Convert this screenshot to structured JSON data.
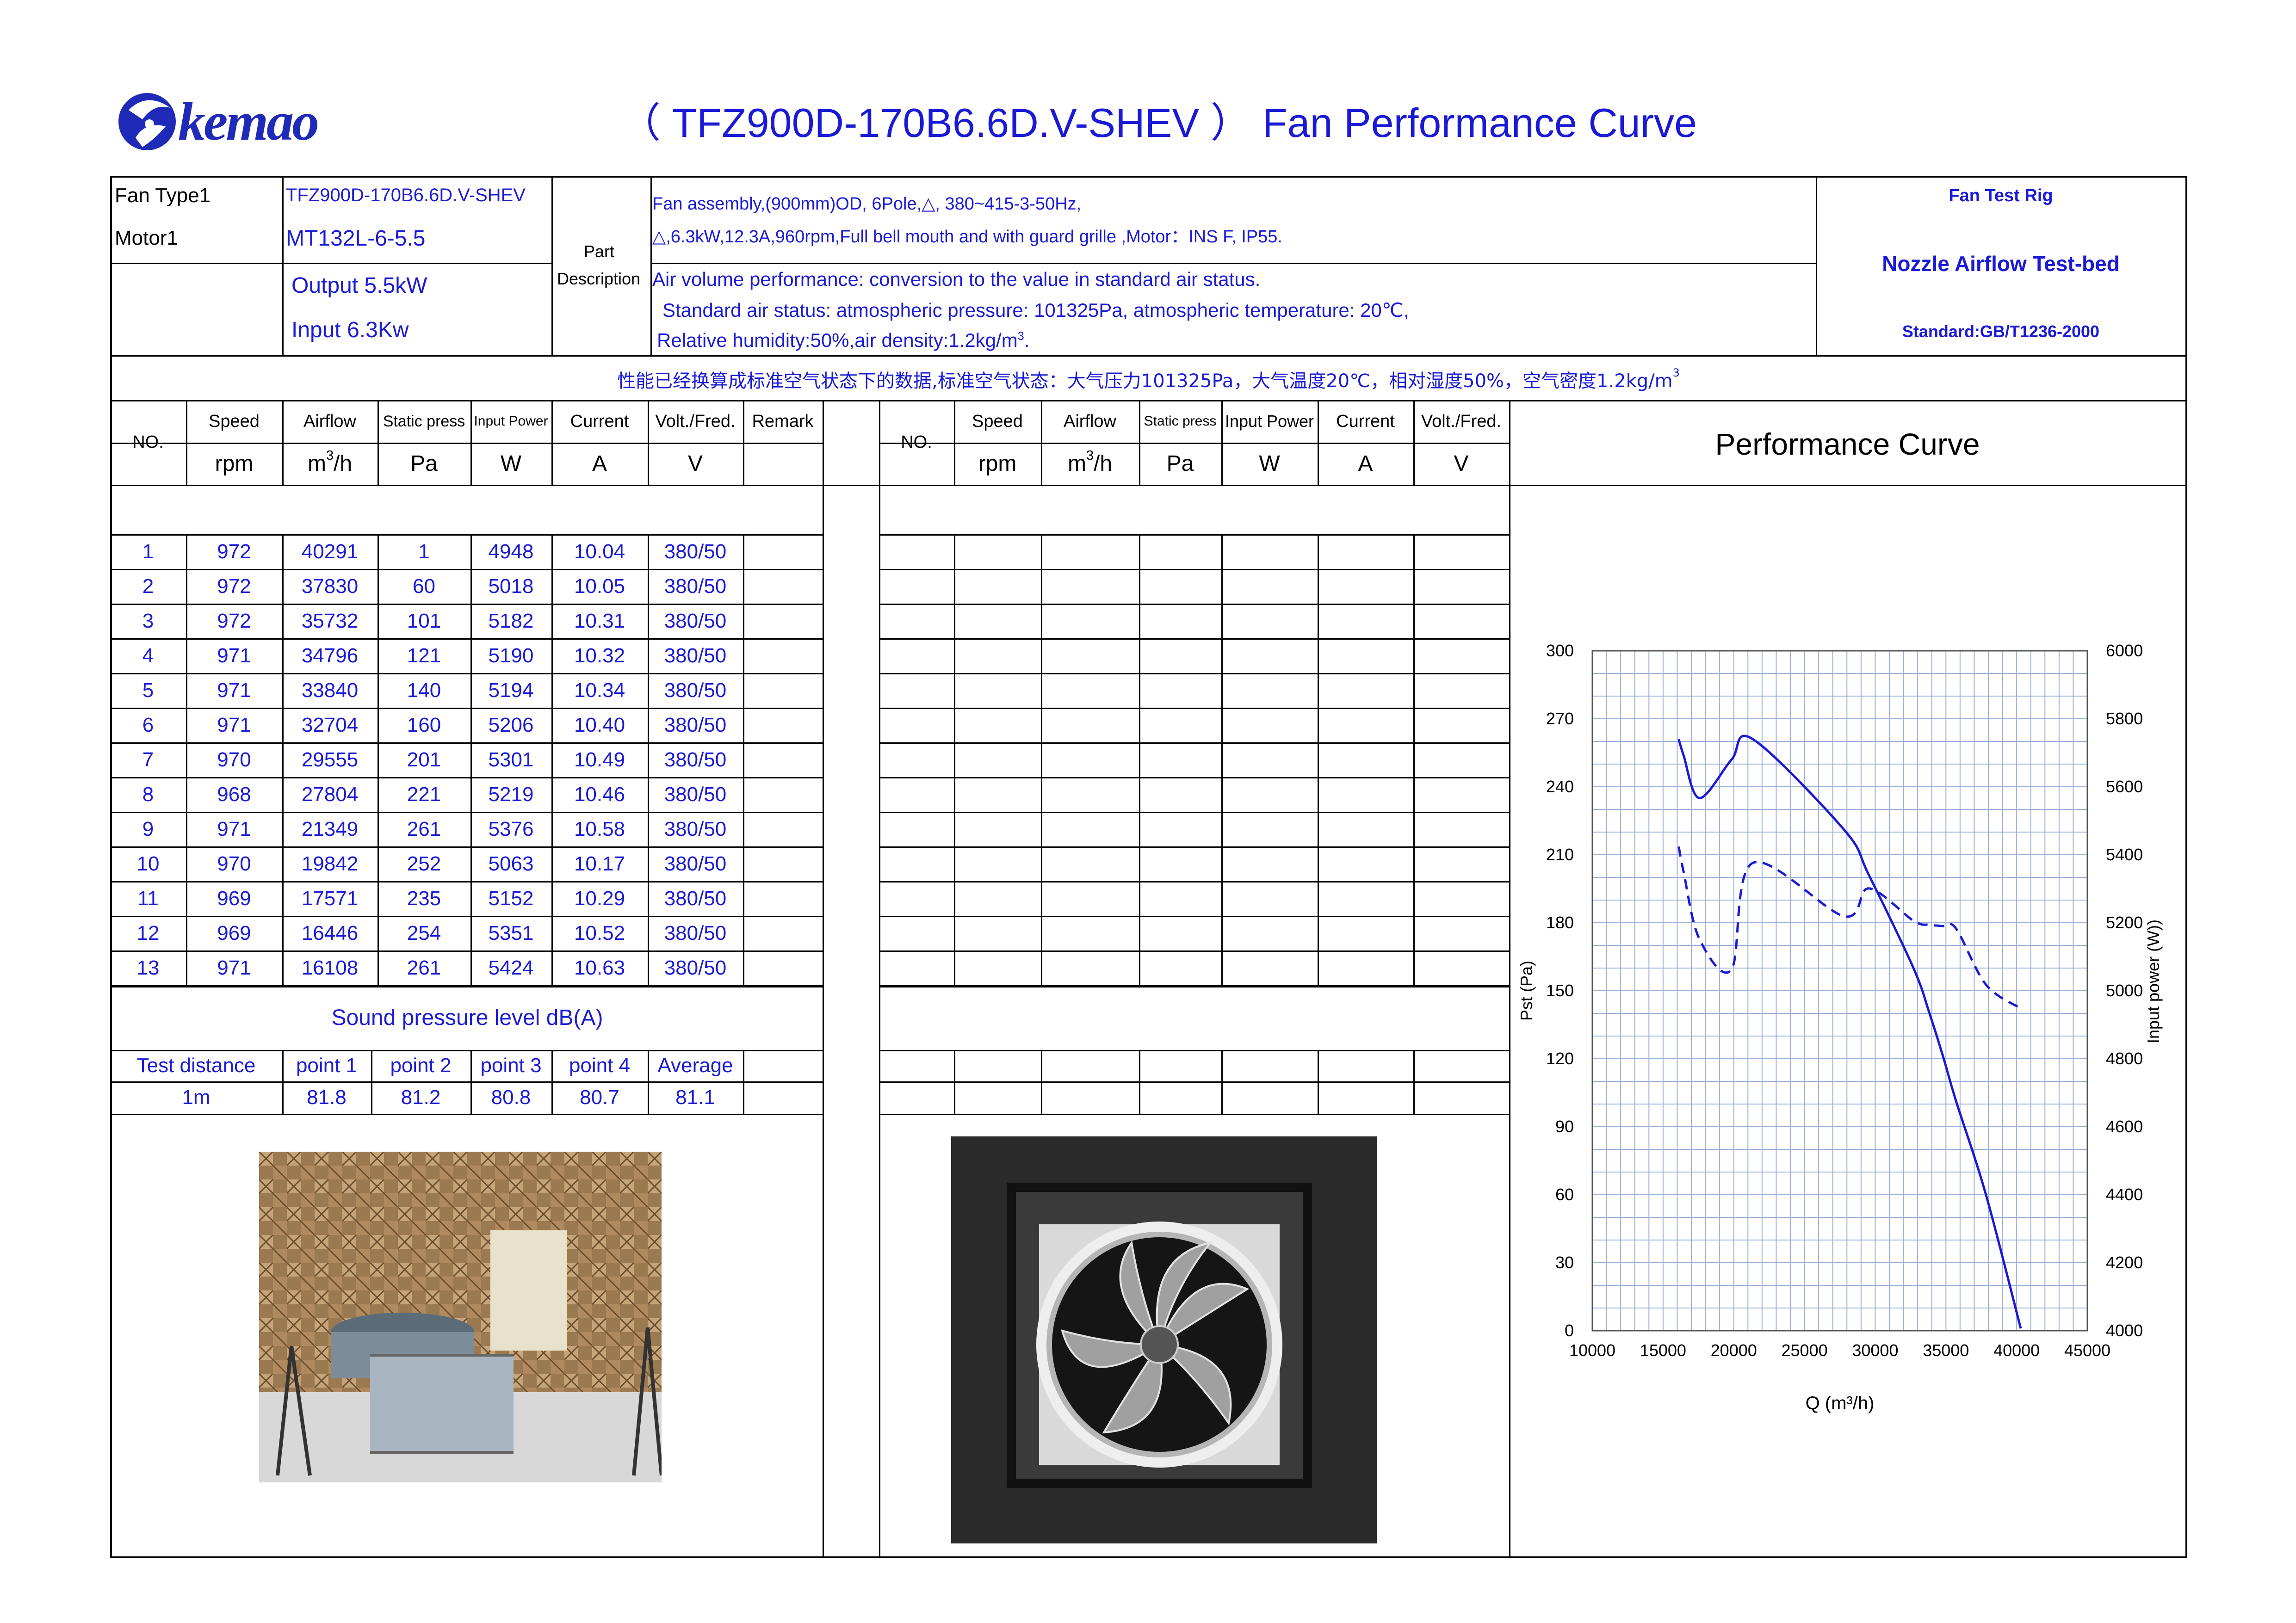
{
  "header": {
    "logo_text": "kemao",
    "title": "（ TFZ900D-170B6.6D.V-SHEV ）  Fan  Performance Curve"
  },
  "info": {
    "fan_type_label": "Fan Type1",
    "fan_type_value": "TFZ900D-170B6.6D.V-SHEV",
    "motor_label": "Motor1",
    "motor_value": "MT132L-6-5.5",
    "output": "Output 5.5kW",
    "input": "Input 6.3Kw",
    "part_label_1": "Part",
    "part_label_2": "Description",
    "desc_line1": "Fan assembly,(900mm)OD, 6Pole,△,   380~415-3-50Hz,",
    "desc_line2": "△,6.3kW,12.3A,960rpm,Full bell mouth and with guard grille ,Motor：INS F, IP55.",
    "desc_line3": "Air volume performance: conversion to the value in standard air status.",
    "desc_line4": "Standard air status: atmospheric pressure: 101325Pa, atmospheric temperature: 20℃,",
    "desc_line5": "Relative humidity:50%,air density:1.2kg/m",
    "desc_line5_sup": "3",
    "desc_line5_end": ".",
    "rig_title": "Fan Test Rig",
    "rig_name": "Nozzle Airflow Test-bed",
    "rig_standard": "Standard:GB/T1236-2000"
  },
  "chinese_note": "性能已经换算成标准空气状态下的数据,标准空气状态：大气压力101325Pa，大气温度20℃，相对湿度50%，空气密度1.2kg/m",
  "chinese_note_sup": "3",
  "table1": {
    "headers": [
      "NO.",
      "Speed",
      "Airflow",
      "Static press",
      "Input Power",
      "Current",
      "Volt./Fred.",
      "Remark"
    ],
    "units": [
      "rpm",
      "m",
      "Pa",
      "W",
      "A",
      "V"
    ],
    "units_sup": "3",
    "units_h": "/h",
    "rows": [
      [
        "1",
        "972",
        "40291",
        "1",
        "4948",
        "10.04",
        "380/50"
      ],
      [
        "2",
        "972",
        "37830",
        "60",
        "5018",
        "10.05",
        "380/50"
      ],
      [
        "3",
        "972",
        "35732",
        "101",
        "5182",
        "10.31",
        "380/50"
      ],
      [
        "4",
        "971",
        "34796",
        "121",
        "5190",
        "10.32",
        "380/50"
      ],
      [
        "5",
        "971",
        "33840",
        "140",
        "5194",
        "10.34",
        "380/50"
      ],
      [
        "6",
        "971",
        "32704",
        "160",
        "5206",
        "10.40",
        "380/50"
      ],
      [
        "7",
        "970",
        "29555",
        "201",
        "5301",
        "10.49",
        "380/50"
      ],
      [
        "8",
        "968",
        "27804",
        "221",
        "5219",
        "10.46",
        "380/50"
      ],
      [
        "9",
        "971",
        "21349",
        "261",
        "5376",
        "10.58",
        "380/50"
      ],
      [
        "10",
        "970",
        "19842",
        "252",
        "5063",
        "10.17",
        "380/50"
      ],
      [
        "11",
        "969",
        "17571",
        "235",
        "5152",
        "10.29",
        "380/50"
      ],
      [
        "12",
        "969",
        "16446",
        "254",
        "5351",
        "10.52",
        "380/50"
      ],
      [
        "13",
        "971",
        "16108",
        "261",
        "5424",
        "10.63",
        "380/50"
      ]
    ]
  },
  "table2": {
    "headers": [
      "NO.",
      "Speed",
      "Airflow",
      "Static press",
      "Input Power",
      "Current",
      "Volt./Fred."
    ],
    "units": [
      "rpm",
      "m",
      "Pa",
      "W",
      "A",
      "V"
    ]
  },
  "sound": {
    "title": "Sound pressure level dB(A)",
    "headers": [
      "Test distance",
      "point 1",
      "point 2",
      "point 3",
      "point 4",
      "Average"
    ],
    "values": [
      "1m",
      "81.8",
      "81.2",
      "80.8",
      "80.7",
      "81.1"
    ]
  },
  "chart_title": "Performance Curve",
  "chart_data": {
    "type": "line",
    "xlabel": "Q (m³/h)",
    "ylabel": "Pst (Pa)",
    "y2label": "Input power  (W))",
    "xlim": [
      10000,
      45000
    ],
    "ylim": [
      0,
      300
    ],
    "y2lim": [
      4000,
      6000
    ],
    "x_ticks": [
      "10000",
      "15000",
      "20000",
      "25000",
      "30000",
      "35000",
      "40000",
      "45000"
    ],
    "y_ticks": [
      "0",
      "30",
      "60",
      "90",
      "120",
      "150",
      "180",
      "210",
      "240",
      "270",
      "300"
    ],
    "y2_ticks": [
      "4000",
      "4200",
      "4400",
      "4600",
      "4800",
      "5000",
      "5200",
      "5400",
      "5600",
      "5800",
      "6000"
    ],
    "grid": true,
    "color": "#1a1ad6",
    "series": [
      {
        "style": "solid",
        "axis": "left",
        "x": [
          16108,
          16446,
          17571,
          19842,
          21349,
          27804,
          29555,
          32704,
          33840,
          34796,
          35732,
          37830,
          40291
        ],
        "y": [
          261,
          254,
          235,
          252,
          261,
          221,
          201,
          160,
          140,
          121,
          101,
          60,
          1
        ]
      },
      {
        "style": "dashed",
        "axis": "right",
        "x": [
          16108,
          16446,
          17571,
          19842,
          21349,
          27804,
          29555,
          32704,
          33840,
          34796,
          35732,
          37830,
          40291
        ],
        "y": [
          5424,
          5351,
          5152,
          5063,
          5376,
          5219,
          5301,
          5206,
          5194,
          5190,
          5182,
          5018,
          4948
        ]
      }
    ]
  }
}
